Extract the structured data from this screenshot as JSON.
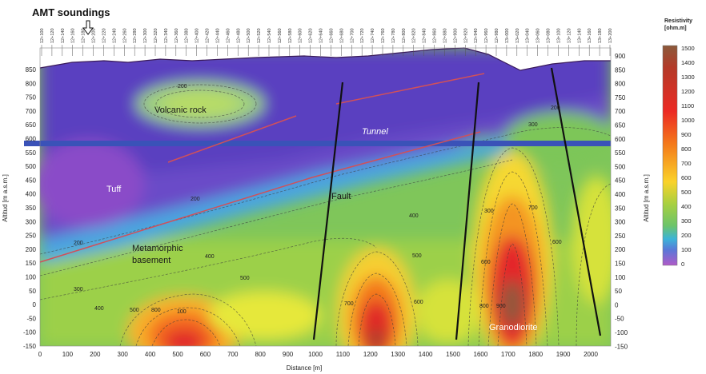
{
  "header": {
    "soundings_label": "AMT soundings"
  },
  "axes": {
    "x_label": "Distance [m]",
    "y_label_left": "Altitud [m a.s.m.]",
    "y_label_right": "Altitud [m a.s.m.]",
    "x_ticks": [
      "0",
      "100",
      "200",
      "300",
      "400",
      "500",
      "600",
      "700",
      "800",
      "900",
      "1000",
      "1100",
      "1200",
      "1300",
      "1400",
      "1500",
      "1600",
      "1700",
      "1800",
      "1900",
      "2000"
    ],
    "y_ticks": [
      "850",
      "800",
      "750",
      "700",
      "650",
      "600",
      "550",
      "500",
      "450",
      "400",
      "350",
      "300",
      "250",
      "200",
      "150",
      "100",
      "50",
      "0",
      "-50",
      "-100",
      "-150"
    ],
    "y_ticks_right": [
      "900",
      "850",
      "800",
      "750",
      "700",
      "650",
      "600",
      "550",
      "500",
      "450",
      "400",
      "350",
      "300",
      "250",
      "200",
      "150",
      "100",
      "50",
      "0",
      "-50",
      "-100",
      "-150"
    ]
  },
  "geology": {
    "volcanic": "Volcanic rock",
    "tunnel": "Tunnel",
    "tuff": "Tuff",
    "fault": "Fault",
    "meta_1": "Metamorphic",
    "meta_2": "basement",
    "grano": "Granodiorite"
  },
  "contour_labels": [
    "200",
    "200",
    "200",
    "200",
    "300",
    "300",
    "300",
    "400",
    "400",
    "400",
    "500",
    "500",
    "500",
    "600",
    "600",
    "600",
    "700",
    "700",
    "800",
    "800",
    "900",
    "100"
  ],
  "colorbar": {
    "title_1": "Resistivity",
    "title_2": "[ohm.m]",
    "ticks": [
      "1500",
      "1400",
      "1300",
      "1200",
      "1100",
      "1000",
      "900",
      "800",
      "700",
      "600",
      "500",
      "400",
      "300",
      "200",
      "100",
      "0"
    ],
    "colors": [
      "#8b5a3c",
      "#9c4a2f",
      "#b43a28",
      "#c8282a",
      "#dc2428",
      "#ec2a24",
      "#f04a1c",
      "#f47a1a",
      "#f8a81c",
      "#fad22a",
      "#f2ec3a",
      "#a8d040",
      "#6cc46a",
      "#3cb4d8",
      "#5a78d8",
      "#8a52c8"
    ]
  },
  "stations": [
    "12+100",
    "12+120",
    "12+140",
    "12+160",
    "12+180",
    "12+200",
    "12+220",
    "12+240",
    "12+260",
    "12+280",
    "12+300",
    "12+320",
    "12+340",
    "12+360",
    "12+380",
    "12+400",
    "12+420",
    "12+440",
    "12+460",
    "12+480",
    "12+500",
    "12+520",
    "12+540",
    "12+560",
    "12+580",
    "12+600",
    "12+620",
    "12+640",
    "12+660",
    "12+680",
    "12+700",
    "12+720",
    "12+740",
    "12+760",
    "12+780",
    "12+800",
    "12+820",
    "12+840",
    "12+860",
    "12+880",
    "12+900",
    "12+920",
    "12+940",
    "12+960",
    "12+980",
    "13+000",
    "13+020",
    "13+040",
    "13+060",
    "13+080",
    "13+100",
    "13+120",
    "13+140",
    "13+160",
    "13+180",
    "13+200"
  ]
}
